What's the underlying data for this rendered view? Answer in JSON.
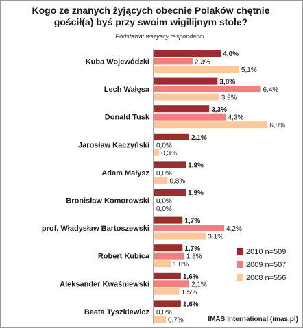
{
  "chart_data": {
    "type": "bar",
    "orientation": "horizontal",
    "title": "Kogo ze znanych żyjących obecnie Polaków chętnie gościł(a) byś przy swoim wigilijnym stole?",
    "title_lines": [
      "Kogo ze znanych żyjących obecnie Polaków chętnie",
      "gościł(a) byś przy swoim wigilijnym stole?"
    ],
    "subtitle": "Podstawa: wszyscy respondenci",
    "categories": [
      "Kuba Wojewódzki",
      "Lech Wałęsa",
      "Donald Tusk",
      "Jarosław Kaczyński",
      "Adam Małysz",
      "Bronisław Komorowski",
      "prof. Władysław Bartoszewski",
      "Robert Kubica",
      "Aleksander Kwaśniewski",
      "Beata Tyszkiewicz"
    ],
    "series": [
      {
        "name": "2010 n=509",
        "color": "#9b2d2d",
        "values": [
          4.0,
          3.8,
          3.3,
          2.1,
          1.9,
          1.9,
          1.7,
          1.7,
          1.6,
          1.6
        ],
        "labels": [
          "4,0%",
          "3,8%",
          "3,3%",
          "2,1%",
          "1,9%",
          "1,9%",
          "1,7%",
          "1,7%",
          "1,6%",
          "1,6%"
        ]
      },
      {
        "name": "2009 n=507",
        "color": "#f08080",
        "values": [
          2.3,
          6.4,
          4.3,
          0.0,
          0.0,
          0.0,
          4.2,
          1.8,
          2.1,
          0.0
        ],
        "labels": [
          "2,3%",
          "6,4%",
          "4,3%",
          "0,0%",
          "0,0%",
          "0,0%",
          "4,2%",
          "1,8%",
          "2,1%",
          "0,0%"
        ]
      },
      {
        "name": "2008 n=556",
        "color": "#fcc89c",
        "values": [
          5.1,
          3.9,
          6.8,
          0.3,
          0.8,
          0.0,
          3.1,
          1.0,
          1.5,
          0.7
        ],
        "labels": [
          "5,1%",
          "3,9%",
          "6,8%",
          "0,3%",
          "0,8%",
          "0,0%",
          "3,1%",
          "1,0%",
          "1,5%",
          "0,7%"
        ]
      }
    ],
    "xlim": [
      0,
      7
    ],
    "grid": false,
    "legend_position": "bottom-right",
    "source": "IMAS International (imas.pl)"
  }
}
